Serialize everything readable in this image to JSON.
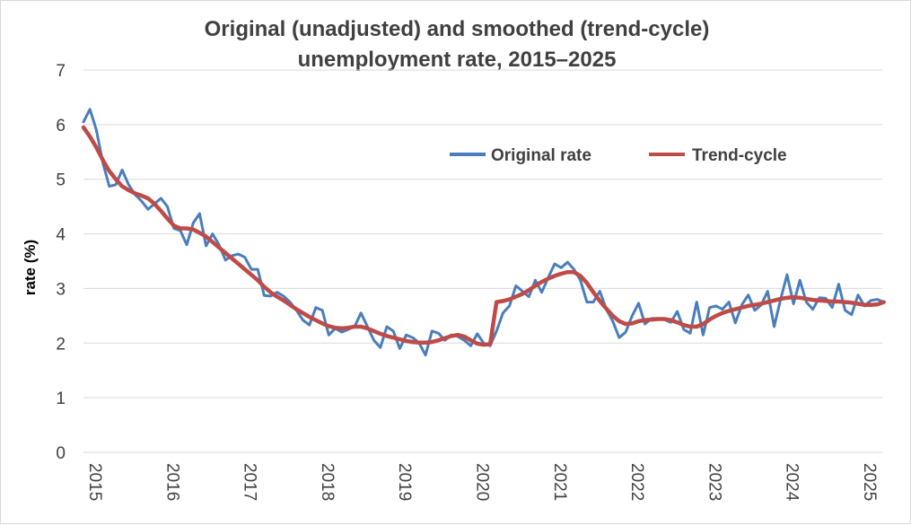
{
  "chart_data": {
    "type": "line",
    "title_line1": "Original (unadjusted) and smoothed (trend-cycle)",
    "title_line2": "unemployment rate, 2015–2025",
    "xlabel": "",
    "ylabel": "rate (%)",
    "ylim": [
      0,
      7
    ],
    "yticks": [
      "0",
      "1",
      "2",
      "3",
      "4",
      "5",
      "6",
      "7"
    ],
    "xlim": [
      2015,
      2025.33
    ],
    "xticks": [
      "2015",
      "2016",
      "2017",
      "2018",
      "2019",
      "2020",
      "2021",
      "2022",
      "2023",
      "2024",
      "2025"
    ],
    "grid": true,
    "legend_position": "top-right",
    "series": [
      {
        "name": "Original rate",
        "color": "#4a7ebb",
        "x_start": 2015,
        "step": 0.08333,
        "values": [
          6.05,
          6.28,
          5.9,
          5.3,
          4.87,
          4.9,
          5.17,
          4.9,
          4.72,
          4.6,
          4.45,
          4.55,
          4.65,
          4.5,
          4.1,
          4.06,
          3.8,
          4.2,
          4.37,
          3.78,
          4.0,
          3.8,
          3.52,
          3.6,
          3.63,
          3.57,
          3.35,
          3.35,
          2.87,
          2.86,
          2.93,
          2.86,
          2.75,
          2.6,
          2.42,
          2.33,
          2.65,
          2.6,
          2.15,
          2.27,
          2.2,
          2.25,
          2.3,
          2.55,
          2.3,
          2.05,
          1.92,
          2.3,
          2.22,
          1.9,
          2.15,
          2.1,
          2.0,
          1.78,
          2.22,
          2.18,
          2.05,
          2.15,
          2.12,
          2.05,
          1.95,
          2.17,
          2.0,
          1.95,
          2.22,
          2.55,
          2.68,
          3.05,
          2.95,
          2.85,
          3.15,
          2.93,
          3.2,
          3.45,
          3.38,
          3.48,
          3.35,
          3.15,
          2.75,
          2.75,
          2.95,
          2.62,
          2.4,
          2.1,
          2.2,
          2.5,
          2.73,
          2.35,
          2.45,
          2.45,
          2.43,
          2.38,
          2.58,
          2.25,
          2.18,
          2.75,
          2.15,
          2.65,
          2.68,
          2.62,
          2.75,
          2.37,
          2.7,
          2.88,
          2.6,
          2.7,
          2.95,
          2.3,
          2.8,
          3.25,
          2.72,
          3.15,
          2.75,
          2.62,
          2.83,
          2.82,
          2.65,
          3.08,
          2.6,
          2.52,
          2.88,
          2.68,
          2.78,
          2.8,
          2.75
        ]
      },
      {
        "name": "Trend-cycle",
        "color": "#be4b48",
        "x_start": 2015,
        "step": 0.08333,
        "values": [
          5.95,
          5.78,
          5.58,
          5.35,
          5.15,
          5.0,
          4.87,
          4.8,
          4.74,
          4.7,
          4.65,
          4.55,
          4.42,
          4.28,
          4.15,
          4.1,
          4.1,
          4.08,
          4.02,
          3.95,
          3.85,
          3.75,
          3.65,
          3.55,
          3.45,
          3.35,
          3.25,
          3.15,
          3.03,
          2.93,
          2.85,
          2.78,
          2.7,
          2.62,
          2.55,
          2.48,
          2.42,
          2.36,
          2.31,
          2.28,
          2.27,
          2.28,
          2.3,
          2.3,
          2.27,
          2.22,
          2.17,
          2.13,
          2.1,
          2.07,
          2.04,
          2.02,
          2.01,
          2.01,
          2.02,
          2.05,
          2.09,
          2.13,
          2.15,
          2.12,
          2.05,
          1.99,
          1.97,
          1.98,
          2.75,
          2.77,
          2.8,
          2.85,
          2.9,
          2.97,
          3.05,
          3.12,
          3.18,
          3.23,
          3.27,
          3.3,
          3.3,
          3.23,
          3.1,
          2.93,
          2.77,
          2.63,
          2.5,
          2.4,
          2.35,
          2.36,
          2.4,
          2.42,
          2.43,
          2.44,
          2.44,
          2.42,
          2.38,
          2.33,
          2.3,
          2.3,
          2.35,
          2.43,
          2.5,
          2.55,
          2.59,
          2.62,
          2.65,
          2.68,
          2.7,
          2.72,
          2.75,
          2.78,
          2.81,
          2.83,
          2.84,
          2.83,
          2.81,
          2.79,
          2.78,
          2.77,
          2.76,
          2.76,
          2.75,
          2.74,
          2.72,
          2.7,
          2.7,
          2.71,
          2.75
        ]
      }
    ]
  }
}
